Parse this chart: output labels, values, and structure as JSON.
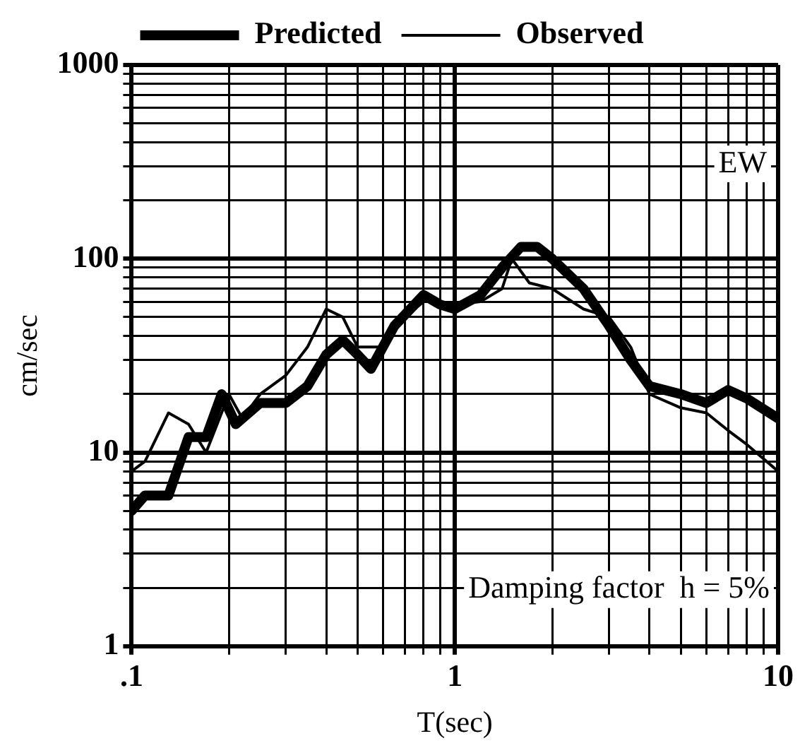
{
  "chart_data": {
    "type": "line",
    "xlabel": "T(sec)",
    "ylabel": "cm/sec",
    "log": "xy",
    "grid": true,
    "legend": "top",
    "marker": "none",
    "line_style": "solid",
    "xlim": [
      0.1,
      10
    ],
    "ylim": [
      1,
      1000
    ],
    "xticks": [
      {
        "value": 0.1,
        "label": ".1"
      },
      {
        "value": 0.2,
        "label": null
      },
      {
        "value": 0.3,
        "label": null
      },
      {
        "value": 0.4,
        "label": null
      },
      {
        "value": 0.5,
        "label": null
      },
      {
        "value": 0.6,
        "label": null
      },
      {
        "value": 0.7,
        "label": null
      },
      {
        "value": 0.8,
        "label": null
      },
      {
        "value": 0.9,
        "label": null
      },
      1,
      {
        "value": 2,
        "label": null
      },
      {
        "value": 3,
        "label": null
      },
      {
        "value": 4,
        "label": null
      },
      {
        "value": 5,
        "label": null
      },
      {
        "value": 6,
        "label": null
      },
      {
        "value": 7,
        "label": null
      },
      {
        "value": 8,
        "label": null
      },
      {
        "value": 9,
        "label": null
      },
      10
    ],
    "yticks": [
      1,
      {
        "value": 2,
        "label": null
      },
      {
        "value": 3,
        "label": null
      },
      {
        "value": 4,
        "label": null
      },
      {
        "value": 5,
        "label": null
      },
      {
        "value": 6,
        "label": null
      },
      {
        "value": 7,
        "label": null
      },
      {
        "value": 8,
        "label": null
      },
      {
        "value": 9,
        "label": null
      },
      10,
      {
        "value": 20,
        "label": null
      },
      {
        "value": 30,
        "label": null
      },
      {
        "value": 40,
        "label": null
      },
      {
        "value": 50,
        "label": null
      },
      {
        "value": 60,
        "label": null
      },
      {
        "value": 70,
        "label": null
      },
      {
        "value": 80,
        "label": null
      },
      {
        "value": 90,
        "label": null
      },
      100,
      {
        "value": 200,
        "label": null
      },
      {
        "value": 300,
        "label": null
      },
      {
        "value": 400,
        "label": null
      },
      {
        "value": 500,
        "label": null
      },
      {
        "value": 600,
        "label": null
      },
      {
        "value": 700,
        "label": null
      },
      {
        "value": 800,
        "label": null
      },
      {
        "value": 900,
        "label": null
      },
      1000
    ],
    "annotations": [
      "EW",
      "Damping factor  h = 5%"
    ],
    "series": [
      {
        "name": "Predicted",
        "color": "#000000",
        "x": [
          0.1,
          0.11,
          0.13,
          0.15,
          0.17,
          0.19,
          0.21,
          0.25,
          0.3,
          0.35,
          0.4,
          0.45,
          0.5,
          0.55,
          0.65,
          0.8,
          0.9,
          1.0,
          1.2,
          1.4,
          1.6,
          1.8,
          2.0,
          2.5,
          3,
          3.5,
          4,
          5,
          6,
          7,
          8,
          10
        ],
        "values": [
          5,
          6,
          6,
          12,
          12,
          20,
          14,
          18,
          18,
          22,
          32,
          38,
          32,
          27,
          45,
          65,
          58,
          55,
          65,
          90,
          115,
          115,
          100,
          70,
          45,
          30,
          22,
          20,
          18,
          21,
          19,
          15
        ]
      },
      {
        "name": "Observed",
        "color": "#000000",
        "x": [
          0.1,
          0.11,
          0.13,
          0.15,
          0.17,
          0.2,
          0.22,
          0.25,
          0.3,
          0.35,
          0.4,
          0.45,
          0.5,
          0.6,
          0.7,
          0.8,
          0.9,
          1.0,
          1.2,
          1.4,
          1.5,
          1.7,
          2,
          2.5,
          3,
          3.5,
          4,
          5,
          6,
          7,
          8,
          10
        ],
        "values": [
          8,
          9,
          16,
          14,
          10,
          20,
          15,
          20,
          25,
          35,
          55,
          50,
          35,
          35,
          50,
          60,
          60,
          58,
          60,
          70,
          100,
          75,
          70,
          55,
          50,
          35,
          20,
          17,
          16,
          13,
          11,
          8
        ]
      }
    ]
  }
}
